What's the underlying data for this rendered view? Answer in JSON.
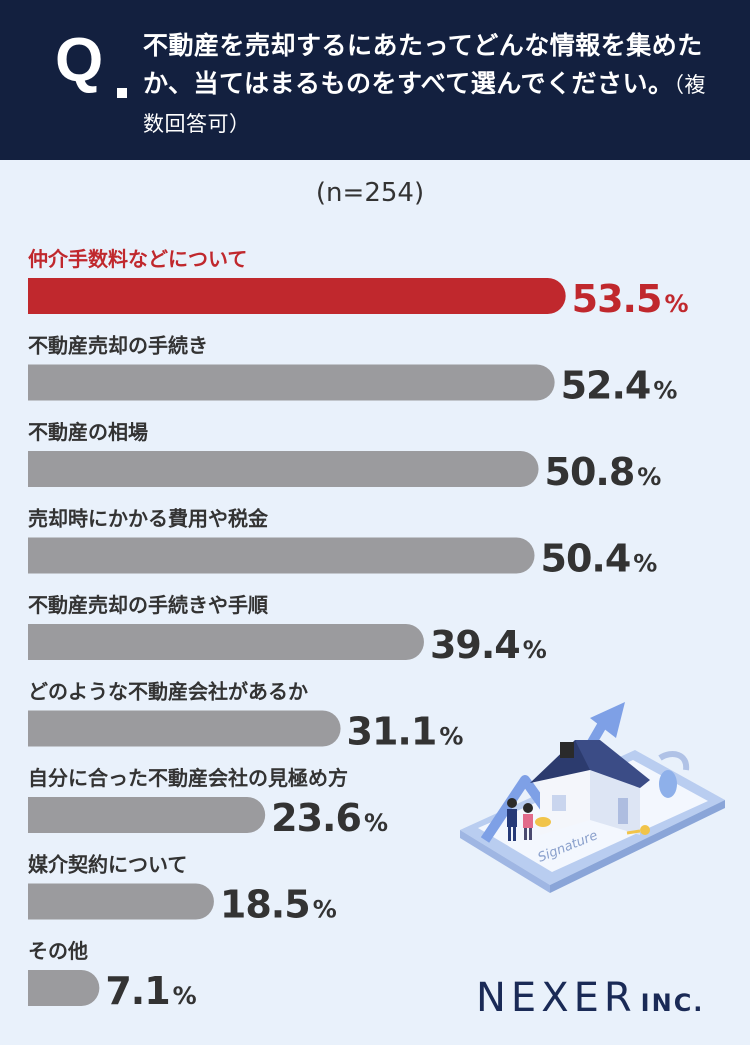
{
  "header": {
    "q_label": "Q",
    "question": "不動産を売却するにあたってどんな情報を集めたか、当てはまるものをすべて選んでください。",
    "note": "（複数回答可）"
  },
  "sample_size": "(n=254)",
  "colors": {
    "highlight": "#c0282d",
    "bar": "#9b9b9e",
    "header_bg": "#13203f",
    "background": "#e9f1fb"
  },
  "chart_data": {
    "type": "bar",
    "orientation": "horizontal",
    "unit": "%",
    "xlim": [
      0,
      100
    ],
    "grid": false,
    "categories": [
      "仲介手数料などについて",
      "不動産売却の手続き",
      "不動産の相場",
      "売却時にかかる費用や税金",
      "不動産売却の手続きや手順",
      "どのような不動産会社があるか",
      "自分に合った不動産会社の見極め方",
      "媒介契約について",
      "その他"
    ],
    "values": [
      53.5,
      52.4,
      50.8,
      50.4,
      39.4,
      31.1,
      23.6,
      18.5,
      7.1
    ],
    "value_labels": [
      "53.5",
      "52.4",
      "50.8",
      "50.4",
      "39.4",
      "31.1",
      "23.6",
      "18.5",
      "7.1"
    ],
    "highlight_index": 0
  },
  "illustration": {
    "icon": "house-sale-illustration-icon",
    "signature_text": "Signature"
  },
  "logo": {
    "name": "NEXER",
    "suffix": "INC."
  }
}
